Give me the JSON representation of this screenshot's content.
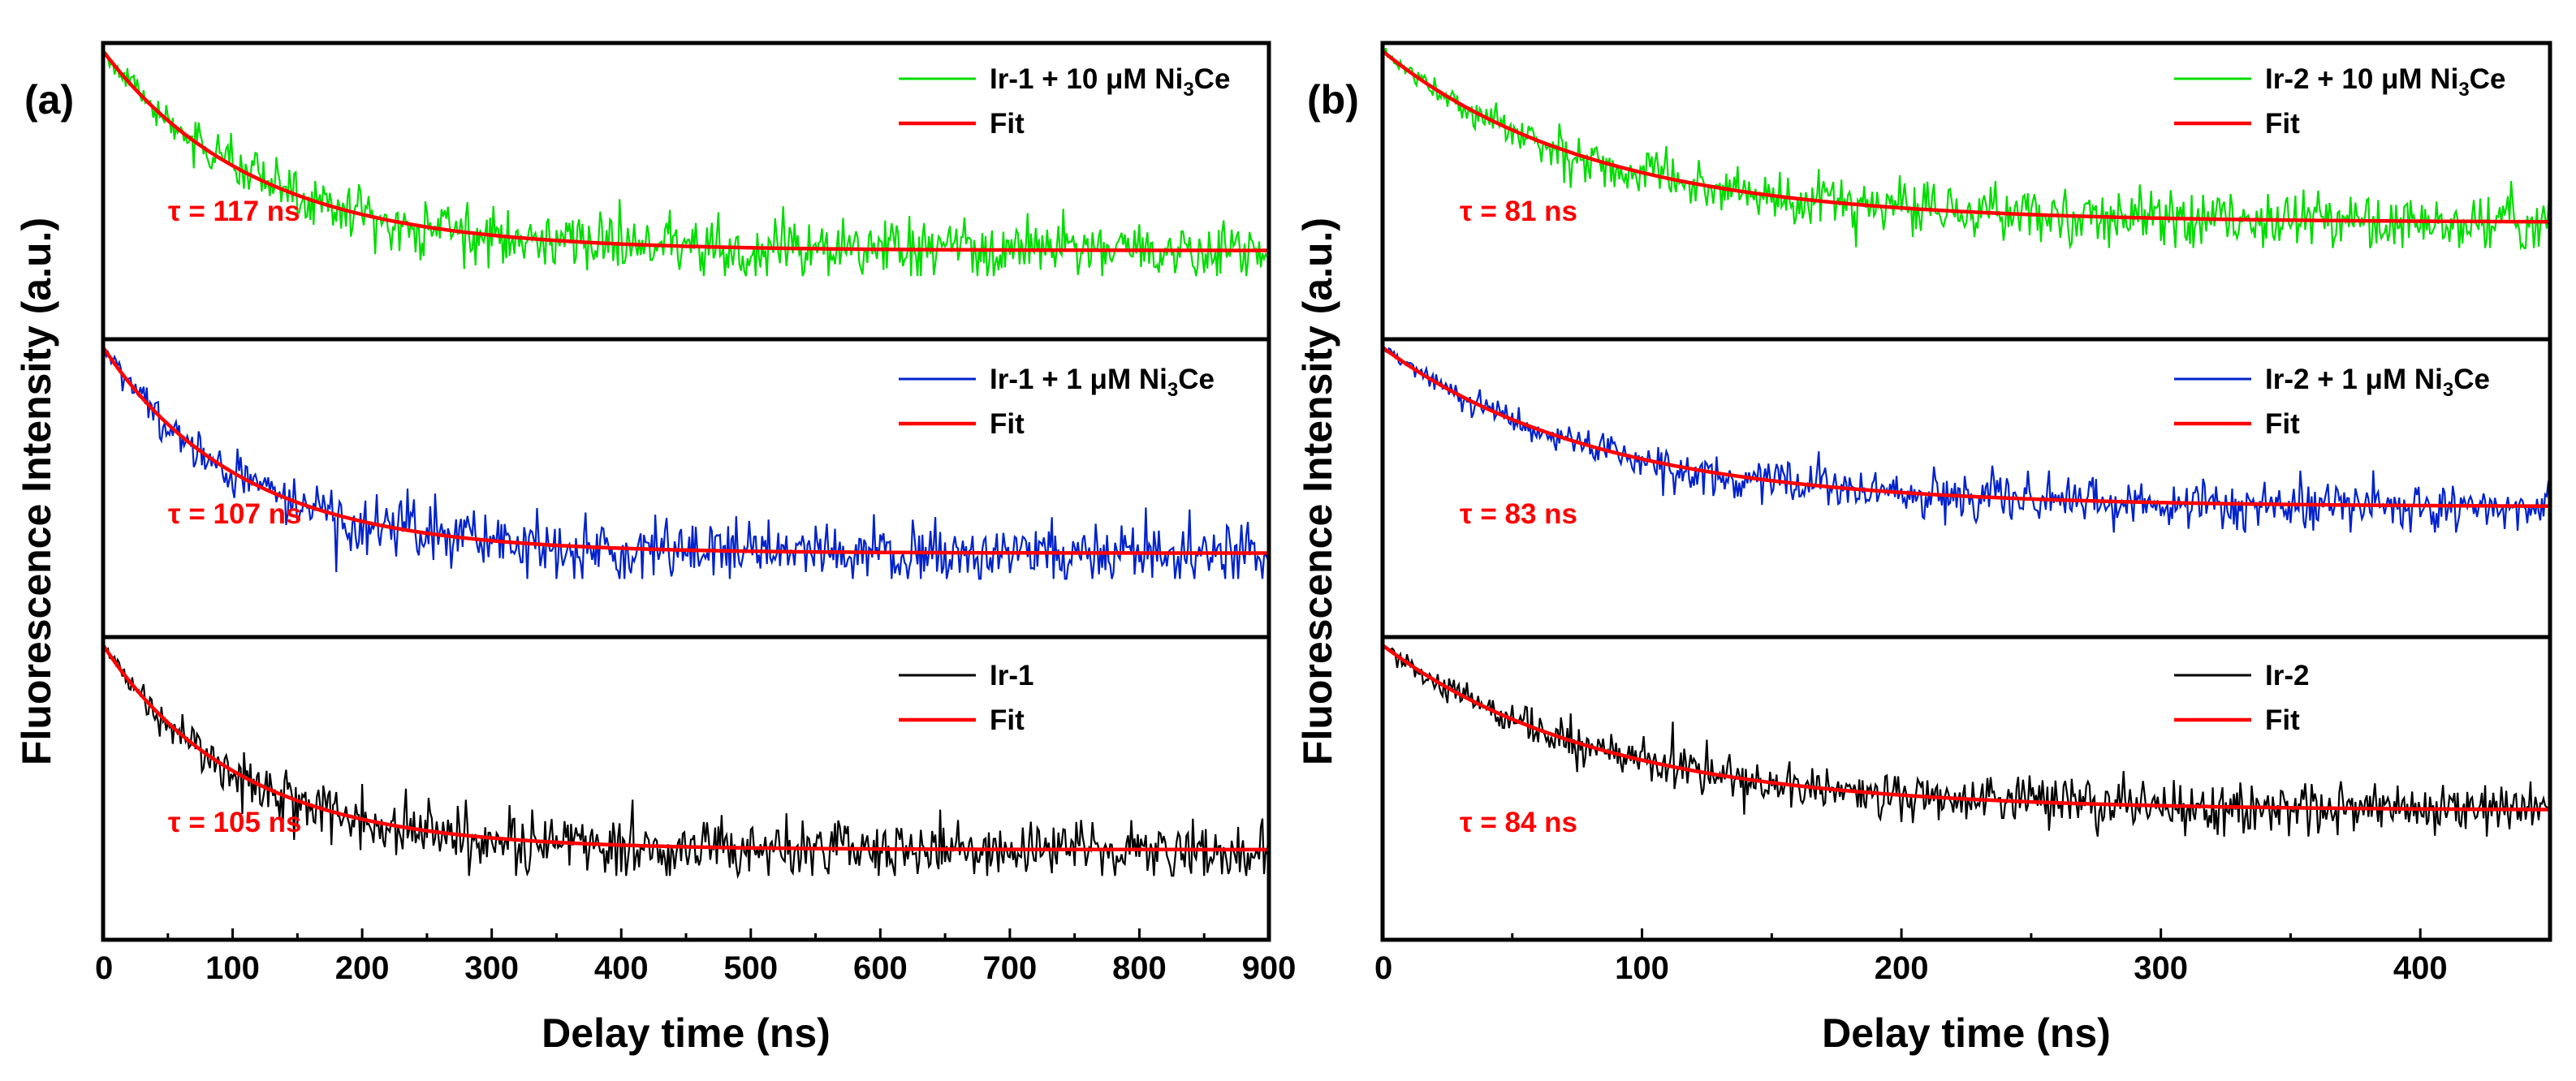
{
  "chart_data": [
    {
      "type": "line",
      "panel_label": "(a)",
      "xlabel": "Delay time (ns)",
      "ylabel": "Fluorescence Intensity (a.u.)",
      "xlim": [
        0,
        900
      ],
      "xticks": [
        0,
        100,
        200,
        300,
        400,
        500,
        600,
        700,
        800,
        900
      ],
      "x_tick_labels": [
        "0",
        "100",
        "200",
        "300",
        "400",
        "500",
        "600",
        "700",
        "800",
        "900"
      ],
      "subplots": [
        {
          "series": [
            {
              "name": "Ir-1 + 10 μM Ni3Ce",
              "legend_base": "Ir-1 + 10 μM Ni",
              "legend_sub": "3",
              "legend_tail": "Ce",
              "color": "#00dd00",
              "kind": "data",
              "noise": 0.06
            },
            {
              "name": "Fit",
              "color": "#ff0000",
              "kind": "fit"
            }
          ],
          "tau_ns": 117,
          "annotation": "τ = 117 ns",
          "decay": {
            "tau": 117,
            "offset": 0.22
          }
        },
        {
          "series": [
            {
              "name": "Ir-1 + 1 μM Ni3Ce",
              "legend_base": "Ir-1 + 1 μM Ni",
              "legend_sub": "3",
              "legend_tail": "Ce",
              "color": "#0022cc",
              "kind": "data",
              "noise": 0.06
            },
            {
              "name": "Fit",
              "color": "#ff0000",
              "kind": "fit"
            }
          ],
          "tau_ns": 107,
          "annotation": "τ = 107 ns",
          "decay": {
            "tau": 107,
            "offset": 0.2
          }
        },
        {
          "series": [
            {
              "name": "Ir-1",
              "legend_base": "Ir-1",
              "legend_sub": "",
              "legend_tail": "",
              "color": "#000000",
              "kind": "data",
              "noise": 0.06
            },
            {
              "name": "Fit",
              "color": "#ff0000",
              "kind": "fit"
            }
          ],
          "tau_ns": 105,
          "annotation": "τ = 105 ns",
          "decay": {
            "tau": 105,
            "offset": 0.22
          }
        }
      ]
    },
    {
      "type": "line",
      "panel_label": "(b)",
      "xlabel": "Delay time (ns)",
      "ylabel": "Fluorescence Intensity (a.u.)",
      "xlim": [
        0,
        450
      ],
      "xticks": [
        0,
        100,
        200,
        300,
        400
      ],
      "x_tick_labels": [
        "0",
        "100",
        "200",
        "300",
        "400"
      ],
      "subplots": [
        {
          "series": [
            {
              "name": "Ir-2 + 10 μM Ni3Ce",
              "legend_base": "Ir-2 + 10 μM Ni",
              "legend_sub": "3",
              "legend_tail": "Ce",
              "color": "#00dd00",
              "kind": "data",
              "noise": 0.055
            },
            {
              "name": "Fit",
              "color": "#ff0000",
              "kind": "fit"
            }
          ],
          "tau_ns": 81,
          "annotation": "τ = 81 ns",
          "decay": {
            "tau": 81,
            "offset": 0.33
          }
        },
        {
          "series": [
            {
              "name": "Ir-2 + 1 μM Ni3Ce",
              "legend_base": "Ir-2 + 1 μM Ni",
              "legend_sub": "3",
              "legend_tail": "Ce",
              "color": "#0022cc",
              "kind": "data",
              "noise": 0.045
            },
            {
              "name": "Fit",
              "color": "#ff0000",
              "kind": "fit"
            }
          ],
          "tau_ns": 83,
          "annotation": "τ = 83 ns",
          "decay": {
            "tau": 83,
            "offset": 0.38
          }
        },
        {
          "series": [
            {
              "name": "Ir-2",
              "legend_base": "Ir-2",
              "legend_sub": "",
              "legend_tail": "",
              "color": "#000000",
              "kind": "data",
              "noise": 0.05
            },
            {
              "name": "Fit",
              "color": "#ff0000",
              "kind": "fit"
            }
          ],
          "tau_ns": 84,
          "annotation": "τ = 84 ns",
          "decay": {
            "tau": 84,
            "offset": 0.37
          }
        }
      ]
    }
  ]
}
